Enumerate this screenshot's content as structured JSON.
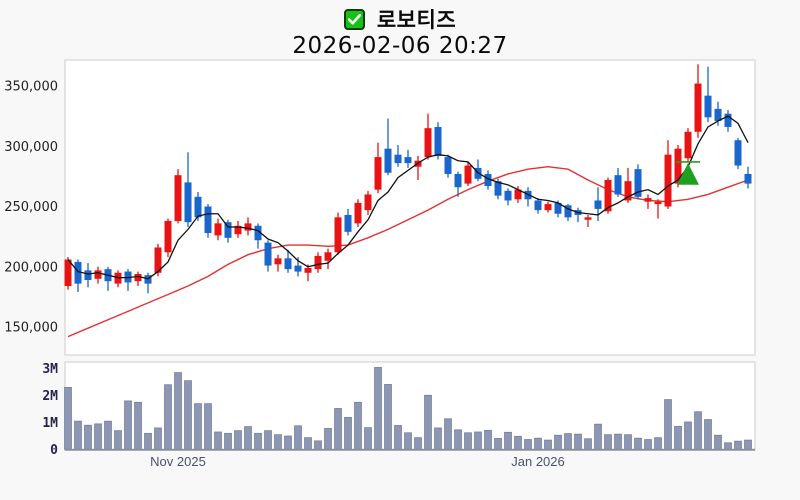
{
  "header": {
    "checkbox_icon": "checked-checkbox",
    "stock_name": "로보티즈",
    "datetime": "2026-02-06 20:27"
  },
  "colors": {
    "up_candle": "#e81414",
    "down_candle": "#1a66cc",
    "ma_short_line": "#111111",
    "ma_long_line": "#e63030",
    "volume_bar_fill": "#8d96b2",
    "volume_bar_stroke": "#6f7a99",
    "marker_green": "#1fa01f",
    "checkbox_green": "#17c217",
    "plot_border": "#cccccc",
    "volume_baseline": "#8a9099",
    "page_bg": "#f8f8f8",
    "plot_bg": "#ffffff"
  },
  "chart_data": {
    "type": "candlestick",
    "title": "로보티즈",
    "subtitle": "2026-02-06 20:27",
    "grid": false,
    "price_axis": {
      "side": "left",
      "ticks": [
        350000,
        300000,
        250000,
        200000,
        150000
      ],
      "tick_labels": [
        "350,000",
        "300,000",
        "250,000",
        "200,000",
        "150,000"
      ],
      "visible_range": [
        127000,
        371000
      ]
    },
    "volume_axis": {
      "side": "left",
      "ticks": [
        3000000,
        2000000,
        1000000,
        0
      ],
      "tick_labels": [
        "3M",
        "2M",
        "1M",
        "0"
      ],
      "max": 3250000
    },
    "x_axis": {
      "month_labels": [
        {
          "label": "Nov 2025",
          "candle_index": 12
        },
        {
          "label": "Jan 2026",
          "candle_index": 48
        }
      ]
    },
    "series": {
      "candles_ohlcv": [
        [
          184000,
          208000,
          181000,
          206000,
          2300000
        ],
        [
          204000,
          206000,
          179000,
          186000,
          1050000
        ],
        [
          197000,
          203000,
          183000,
          189000,
          900000
        ],
        [
          190000,
          200000,
          186000,
          197000,
          950000
        ],
        [
          198000,
          200000,
          180000,
          188000,
          1050000
        ],
        [
          186000,
          197000,
          183000,
          195000,
          700000
        ],
        [
          196000,
          198000,
          180000,
          187000,
          1800000
        ],
        [
          188000,
          196000,
          184000,
          194000,
          1750000
        ],
        [
          193000,
          195000,
          178000,
          186000,
          600000
        ],
        [
          195000,
          219000,
          192000,
          216000,
          800000
        ],
        [
          212000,
          240000,
          208000,
          238000,
          2400000
        ],
        [
          238000,
          281000,
          236000,
          276000,
          2850000
        ],
        [
          270000,
          295000,
          233000,
          237000,
          2550000
        ],
        [
          258000,
          262000,
          238000,
          241000,
          1700000
        ],
        [
          250000,
          252000,
          224000,
          228000,
          1700000
        ],
        [
          226000,
          240000,
          222000,
          236000,
          650000
        ],
        [
          237000,
          239000,
          220000,
          224000,
          600000
        ],
        [
          227000,
          238000,
          224000,
          234000,
          700000
        ],
        [
          230000,
          241000,
          226000,
          236000,
          850000
        ],
        [
          234000,
          236000,
          215000,
          222000,
          600000
        ],
        [
          220000,
          222000,
          196000,
          201000,
          700000
        ],
        [
          202000,
          210000,
          196000,
          207000,
          550000
        ],
        [
          207000,
          214000,
          195000,
          198000,
          500000
        ],
        [
          201000,
          208000,
          192000,
          196000,
          880000
        ],
        [
          195000,
          202000,
          188000,
          199000,
          440000
        ],
        [
          198000,
          212000,
          195000,
          209000,
          320000
        ],
        [
          205000,
          215000,
          198000,
          212000,
          780000
        ],
        [
          212000,
          245000,
          210000,
          241000,
          1520000
        ],
        [
          243000,
          248000,
          226000,
          229000,
          1190000
        ],
        [
          236000,
          256000,
          233000,
          253000,
          1750000
        ],
        [
          247000,
          263000,
          243000,
          260000,
          810000
        ],
        [
          264000,
          303000,
          261000,
          291000,
          3040000
        ],
        [
          298000,
          323000,
          276000,
          278000,
          2410000
        ],
        [
          293000,
          301000,
          283000,
          286000,
          890000
        ],
        [
          291000,
          297000,
          282000,
          286000,
          620000
        ],
        [
          283000,
          292000,
          272000,
          288000,
          440000
        ],
        [
          291000,
          327000,
          289000,
          315000,
          2010000
        ],
        [
          316000,
          320000,
          289000,
          292000,
          800000
        ],
        [
          291000,
          293000,
          274000,
          277000,
          1140000
        ],
        [
          277000,
          279000,
          258000,
          266000,
          730000
        ],
        [
          269000,
          287000,
          267000,
          284000,
          620000
        ],
        [
          282000,
          289000,
          271000,
          273000,
          650000
        ],
        [
          277000,
          280000,
          264000,
          267000,
          710000
        ],
        [
          271000,
          273000,
          256000,
          259000,
          410000
        ],
        [
          263000,
          265000,
          251000,
          255000,
          640000
        ],
        [
          256000,
          267000,
          253000,
          264000,
          490000
        ],
        [
          263000,
          266000,
          250000,
          256000,
          370000
        ],
        [
          255000,
          257000,
          244000,
          247000,
          420000
        ],
        [
          247000,
          254000,
          245000,
          252000,
          350000
        ],
        [
          253000,
          255000,
          241000,
          244000,
          530000
        ],
        [
          251000,
          252000,
          238000,
          241000,
          590000
        ],
        [
          247000,
          249000,
          237000,
          243000,
          570000
        ],
        [
          239000,
          243000,
          233000,
          241000,
          400000
        ],
        [
          255000,
          266000,
          238000,
          248000,
          940000
        ],
        [
          246000,
          274000,
          244000,
          272000,
          550000
        ],
        [
          276000,
          282000,
          258000,
          260000,
          570000
        ],
        [
          255000,
          282000,
          253000,
          271000,
          550000
        ],
        [
          281000,
          285000,
          256000,
          258000,
          420000
        ],
        [
          254000,
          260000,
          248000,
          257000,
          370000
        ],
        [
          252000,
          256000,
          240000,
          254000,
          440000
        ],
        [
          250000,
          305000,
          248000,
          293000,
          1850000
        ],
        [
          269000,
          301000,
          266000,
          298000,
          860000
        ],
        [
          290000,
          315000,
          287000,
          312000,
          1020000
        ],
        [
          312000,
          368000,
          307000,
          352000,
          1400000
        ],
        [
          342000,
          366000,
          320000,
          324000,
          1110000
        ],
        [
          331000,
          337000,
          317000,
          321000,
          530000
        ],
        [
          327000,
          330000,
          312000,
          316000,
          250000
        ],
        [
          305000,
          307000,
          281000,
          284000,
          310000
        ],
        [
          277000,
          283000,
          265000,
          269000,
          350000
        ]
      ],
      "ma_short": [
        206000,
        196000,
        194000,
        195000,
        193000,
        191000,
        191000,
        192000,
        190000,
        196000,
        204000,
        222000,
        231000,
        242000,
        244000,
        244000,
        233000,
        233000,
        232000,
        230000,
        223000,
        220000,
        213000,
        205000,
        200000,
        202000,
        203000,
        211000,
        218000,
        229000,
        239000,
        255000,
        262000,
        274000,
        280000,
        286000,
        291000,
        293000,
        292000,
        288000,
        287000,
        278000,
        273000,
        270000,
        268000,
        264000,
        260000,
        256000,
        255000,
        253000,
        248000,
        245000,
        244000,
        243000,
        249000,
        253000,
        258000,
        262000,
        264000,
        260000,
        267000,
        272000,
        283000,
        302000,
        316000,
        321000,
        325000,
        319000,
        303000
      ],
      "ma_long": [
        [
          1,
          142000
        ],
        [
          3,
          149000
        ],
        [
          5,
          156000
        ],
        [
          7,
          163000
        ],
        [
          9,
          170000
        ],
        [
          11,
          177000
        ],
        [
          13,
          184000
        ],
        [
          15,
          192000
        ],
        [
          17,
          202000
        ],
        [
          19,
          210000
        ],
        [
          21,
          215000
        ],
        [
          23,
          218000
        ],
        [
          25,
          218000
        ],
        [
          27,
          217000
        ],
        [
          29,
          218000
        ],
        [
          31,
          224000
        ],
        [
          33,
          231000
        ],
        [
          35,
          239000
        ],
        [
          37,
          247000
        ],
        [
          39,
          256000
        ],
        [
          41,
          264000
        ],
        [
          43,
          271000
        ],
        [
          45,
          277000
        ],
        [
          47,
          281000
        ],
        [
          49,
          283000
        ],
        [
          51,
          281000
        ],
        [
          53,
          272000
        ],
        [
          55,
          264000
        ],
        [
          57,
          258000
        ],
        [
          59,
          255000
        ],
        [
          61,
          254000
        ],
        [
          63,
          256000
        ],
        [
          65,
          260000
        ],
        [
          67,
          266000
        ],
        [
          69,
          272000
        ]
      ]
    },
    "marker": {
      "shape": "up-triangle",
      "candle_index": 63,
      "line_price": 287000,
      "apex_price": 286000,
      "base_price": 268000
    }
  }
}
